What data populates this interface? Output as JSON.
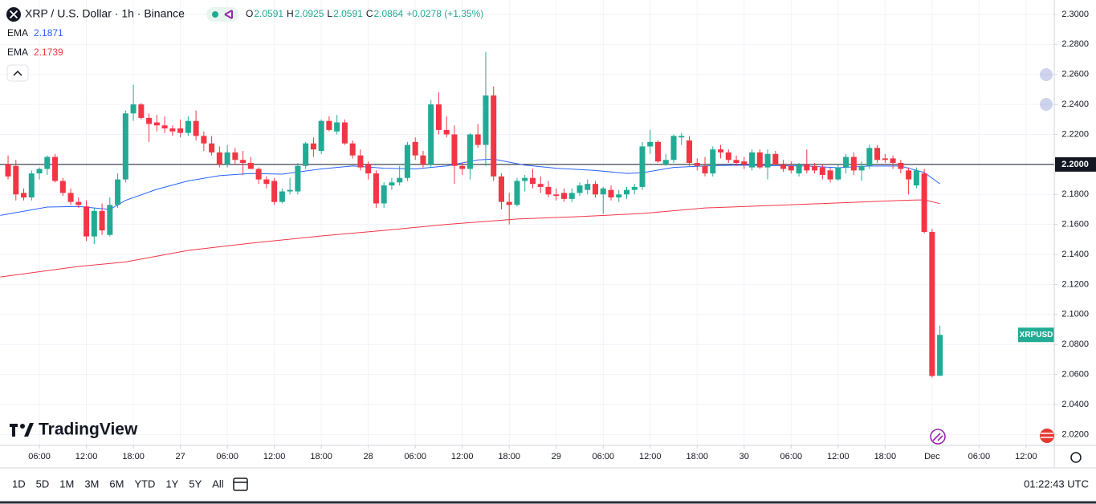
{
  "chart_data": {
    "type": "candlestick",
    "title": "XRP / U.S. Dollar · 1h · Binance",
    "ohlc_labels": [
      "O",
      "H",
      "L",
      "C"
    ],
    "change": "+0.0278 (+1.35%)",
    "up_color": "#22ab94",
    "down_color": "#f23645",
    "x": [
      2,
      3,
      4,
      5,
      6,
      7,
      8,
      9,
      10,
      11,
      12,
      13,
      14,
      15,
      16,
      17,
      18,
      19,
      20,
      21,
      22,
      23,
      24,
      25,
      26,
      27,
      28,
      29,
      30,
      31,
      32,
      33,
      34,
      35,
      36,
      37,
      38,
      39,
      40,
      41,
      42,
      43,
      44,
      45,
      46,
      47,
      48,
      49,
      50,
      51,
      52,
      53,
      54,
      55,
      56,
      57,
      58,
      59,
      60,
      61,
      62,
      63,
      64,
      65,
      66,
      67,
      68,
      69,
      70,
      71,
      72,
      73,
      74,
      75,
      76,
      77,
      78,
      79,
      80,
      81,
      82,
      83,
      84,
      85,
      86,
      87,
      88,
      89,
      90,
      91,
      92,
      93,
      94,
      95,
      96,
      97,
      98,
      99,
      100,
      101,
      102,
      103,
      104,
      105,
      106,
      107,
      108,
      109,
      110,
      111,
      112,
      113,
      114,
      115,
      116,
      117,
      118,
      119,
      120,
      121
    ],
    "open": [
      2.2,
      2.199,
      2.181,
      2.178,
      2.194,
      2.197,
      2.205,
      2.189,
      2.181,
      2.175,
      2.172,
      2.152,
      2.169,
      2.153,
      2.173,
      2.19,
      2.234,
      2.24,
      2.231,
      2.228,
      2.226,
      2.224,
      2.224,
      2.221,
      2.229,
      2.219,
      2.214,
      2.208,
      2.2,
      2.208,
      2.203,
      2.201,
      2.197,
      2.19,
      2.189,
      2.175,
      2.182,
      2.182,
      2.199,
      2.214,
      2.209,
      2.229,
      2.222,
      2.228,
      2.214,
      2.206,
      2.2,
      2.194,
      2.174,
      2.186,
      2.188,
      2.191,
      2.215,
      2.206,
      2.2,
      2.24,
      2.223,
      2.22,
      2.199,
      2.197,
      2.22,
      2.213,
      2.246,
      2.192,
      2.175,
      2.173,
      2.189,
      2.191,
      2.187,
      2.185,
      2.18,
      2.181,
      2.177,
      2.181,
      2.183,
      2.187,
      2.18,
      2.183,
      2.178,
      2.18,
      2.183,
      2.185,
      2.212,
      2.215,
      2.2,
      2.203,
      2.218,
      2.216,
      2.201,
      2.199,
      2.194,
      2.21,
      2.208,
      2.203,
      2.202,
      2.198,
      2.208,
      2.198,
      2.207,
      2.2,
      2.199,
      2.194,
      2.2,
      2.199,
      2.198,
      2.196,
      2.19,
      2.198,
      2.205,
      2.196,
      2.199,
      2.211,
      2.204,
      2.204,
      2.201,
      2.196,
      2.186,
      2.194,
      2.155,
      2.0591
    ],
    "high": [
      2.206,
      2.203,
      2.184,
      2.196,
      2.198,
      2.206,
      2.207,
      2.191,
      2.184,
      2.178,
      2.176,
      2.171,
      2.174,
      2.178,
      2.194,
      2.236,
      2.253,
      2.241,
      2.234,
      2.233,
      2.232,
      2.226,
      2.23,
      2.232,
      2.236,
      2.222,
      2.219,
      2.212,
      2.213,
      2.211,
      2.209,
      2.205,
      2.198,
      2.192,
      2.191,
      2.184,
      2.191,
      2.201,
      2.215,
      2.218,
      2.23,
      2.232,
      2.233,
      2.23,
      2.216,
      2.21,
      2.202,
      2.196,
      2.188,
      2.191,
      2.199,
      2.215,
      2.218,
      2.209,
      2.243,
      2.248,
      2.232,
      2.226,
      2.201,
      2.221,
      2.227,
      2.275,
      2.252,
      2.194,
      2.181,
      2.191,
      2.193,
      2.197,
      2.192,
      2.189,
      2.184,
      2.184,
      2.184,
      2.188,
      2.19,
      2.189,
      2.185,
      2.186,
      2.183,
      2.185,
      2.187,
      2.215,
      2.223,
      2.216,
      2.207,
      2.22,
      2.221,
      2.219,
      2.204,
      2.205,
      2.212,
      2.213,
      2.21,
      2.206,
      2.205,
      2.21,
      2.21,
      2.21,
      2.209,
      2.203,
      2.202,
      2.201,
      2.21,
      2.201,
      2.2,
      2.198,
      2.2,
      2.207,
      2.208,
      2.202,
      2.213,
      2.213,
      2.207,
      2.206,
      2.203,
      2.198,
      2.198,
      2.197,
      2.157,
      2.0925
    ],
    "low": [
      2.19,
      2.176,
      2.176,
      2.176,
      2.19,
      2.193,
      2.188,
      2.179,
      2.173,
      2.171,
      2.149,
      2.147,
      2.153,
      2.152,
      2.171,
      2.188,
      2.229,
      2.23,
      2.215,
      2.222,
      2.221,
      2.219,
      2.218,
      2.219,
      2.216,
      2.209,
      2.206,
      2.198,
      2.198,
      2.2,
      2.193,
      2.197,
      2.187,
      2.184,
      2.173,
      2.174,
      2.18,
      2.18,
      2.197,
      2.205,
      2.207,
      2.222,
      2.22,
      2.213,
      2.204,
      2.196,
      2.19,
      2.171,
      2.171,
      2.183,
      2.186,
      2.189,
      2.203,
      2.198,
      2.198,
      2.22,
      2.218,
      2.187,
      2.193,
      2.19,
      2.211,
      2.199,
      2.189,
      2.17,
      2.16,
      2.172,
      2.182,
      2.184,
      2.181,
      2.178,
      2.176,
      2.175,
      2.175,
      2.179,
      2.18,
      2.178,
      2.167,
      2.176,
      2.175,
      2.177,
      2.18,
      2.183,
      2.207,
      2.201,
      2.199,
      2.201,
      2.213,
      2.199,
      2.196,
      2.192,
      2.192,
      2.204,
      2.201,
      2.199,
      2.197,
      2.196,
      2.197,
      2.19,
      2.2,
      2.195,
      2.194,
      2.192,
      2.194,
      2.194,
      2.19,
      2.188,
      2.189,
      2.194,
      2.193,
      2.189,
      2.197,
      2.201,
      2.201,
      2.197,
      2.194,
      2.18,
      2.184,
      2.154,
      2.058,
      2.0591
    ],
    "close": [
      2.192,
      2.18,
      2.178,
      2.194,
      2.197,
      2.205,
      2.189,
      2.181,
      2.175,
      2.173,
      2.152,
      2.169,
      2.156,
      2.173,
      2.19,
      2.234,
      2.24,
      2.231,
      2.227,
      2.226,
      2.224,
      2.222,
      2.221,
      2.229,
      2.219,
      2.214,
      2.208,
      2.2,
      2.208,
      2.203,
      2.201,
      2.197,
      2.19,
      2.187,
      2.175,
      2.182,
      2.183,
      2.199,
      2.214,
      2.21,
      2.229,
      2.223,
      2.228,
      2.214,
      2.206,
      2.198,
      2.194,
      2.174,
      2.186,
      2.188,
      2.191,
      2.213,
      2.206,
      2.2,
      2.24,
      2.223,
      2.22,
      2.199,
      2.197,
      2.22,
      2.213,
      2.246,
      2.192,
      2.175,
      2.173,
      2.189,
      2.191,
      2.187,
      2.185,
      2.18,
      2.179,
      2.177,
      2.181,
      2.186,
      2.187,
      2.18,
      2.184,
      2.178,
      2.18,
      2.183,
      2.185,
      2.212,
      2.215,
      2.202,
      2.203,
      2.219,
      2.219,
      2.201,
      2.199,
      2.194,
      2.21,
      2.208,
      2.203,
      2.201,
      2.2,
      2.208,
      2.198,
      2.207,
      2.2,
      2.197,
      2.196,
      2.2,
      2.196,
      2.196,
      2.193,
      2.19,
      2.198,
      2.205,
      2.196,
      2.199,
      2.211,
      2.203,
      2.203,
      2.201,
      2.197,
      2.19,
      2.196,
      2.155,
      2.059,
      2.0864
    ],
    "indicators": [
      {
        "name": "EMA",
        "color": "#2962ff",
        "x": [
          1,
          7,
          11,
          15,
          17,
          21,
          25,
          29,
          33,
          37,
          42,
          46,
          50,
          54,
          58,
          62,
          64,
          68,
          72,
          77,
          81,
          83,
          87,
          91,
          95,
          100,
          104,
          108,
          112,
          116,
          119,
          121
        ],
        "values": [
          2.166,
          2.1716,
          2.172,
          2.17,
          2.176,
          2.1834,
          2.189,
          2.1925,
          2.194,
          2.1935,
          2.197,
          2.199,
          2.1975,
          2.197,
          2.199,
          2.203,
          2.2035,
          2.1995,
          2.1975,
          2.196,
          2.194,
          2.1945,
          2.198,
          2.199,
          2.1995,
          2.1992,
          2.1989,
          2.1978,
          2.1989,
          2.1989,
          2.1946,
          2.1871
        ]
      },
      {
        "name": "EMA",
        "color": "#f23645",
        "x": [
          1,
          11,
          17,
          25,
          33,
          42,
          50,
          58,
          67,
          75,
          83,
          91,
          100,
          108,
          116,
          119,
          121
        ],
        "values": [
          2.125,
          2.132,
          2.135,
          2.1427,
          2.1475,
          2.1523,
          2.156,
          2.16,
          2.1636,
          2.1652,
          2.1673,
          2.171,
          2.1727,
          2.1743,
          2.176,
          2.1764,
          2.1739
        ]
      }
    ],
    "hline": {
      "value": 2.2,
      "label": "2.2000"
    },
    "price_label": "XRPUSD",
    "xlim": [
      0.97,
      135.6
    ],
    "xticks": [
      {
        "value": 6,
        "label": "06:00"
      },
      {
        "value": 12,
        "label": "12:00"
      },
      {
        "value": 18,
        "label": "18:00"
      },
      {
        "value": 24,
        "label": "27"
      },
      {
        "value": 30,
        "label": "06:00"
      },
      {
        "value": 36,
        "label": "12:00"
      },
      {
        "value": 42,
        "label": "18:00"
      },
      {
        "value": 48,
        "label": "28"
      },
      {
        "value": 54,
        "label": "06:00"
      },
      {
        "value": 60,
        "label": "12:00"
      },
      {
        "value": 66,
        "label": "18:00"
      },
      {
        "value": 72,
        "label": "29"
      },
      {
        "value": 78,
        "label": "06:00"
      },
      {
        "value": 84,
        "label": "12:00"
      },
      {
        "value": 90,
        "label": "18:00"
      },
      {
        "value": 96,
        "label": "30"
      },
      {
        "value": 102,
        "label": "06:00"
      },
      {
        "value": 108,
        "label": "12:00"
      },
      {
        "value": 114,
        "label": "18:00"
      },
      {
        "value": 120,
        "label": "Dec"
      },
      {
        "value": 126,
        "label": "06:00"
      },
      {
        "value": 132,
        "label": "12:00"
      }
    ],
    "ylim": [
      2.0127,
      2.3096
    ],
    "yticks": [
      {
        "value": 2.3,
        "label": "2.3000"
      },
      {
        "value": 2.28,
        "label": "2.2800"
      },
      {
        "value": 2.26,
        "label": "2.2600"
      },
      {
        "value": 2.24,
        "label": "2.2400"
      },
      {
        "value": 2.22,
        "label": "2.2200"
      },
      {
        "value": 2.2,
        "label": "2.2000"
      },
      {
        "value": 2.18,
        "label": "2.1800"
      },
      {
        "value": 2.16,
        "label": "2.1600"
      },
      {
        "value": 2.14,
        "label": "2.1400"
      },
      {
        "value": 2.12,
        "label": "2.1200"
      },
      {
        "value": 2.1,
        "label": "2.1000"
      },
      {
        "value": 2.08,
        "label": "2.0800"
      },
      {
        "value": 2.06,
        "label": "2.0600"
      },
      {
        "value": 2.04,
        "label": "2.0400"
      },
      {
        "value": 2.02,
        "label": "2.0200"
      }
    ],
    "grid": true,
    "watermark": "TradingView"
  },
  "toolbar": {
    "ranges": [
      "1D",
      "5D",
      "1M",
      "3M",
      "6M",
      "YTD",
      "1Y",
      "5Y",
      "All"
    ],
    "clock": "01:22:43 UTC"
  }
}
